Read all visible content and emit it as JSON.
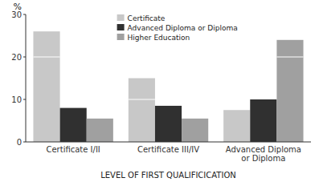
{
  "chart_data": {
    "type": "bar",
    "categories": [
      "Certificate I/II",
      "Certificate III/IV",
      "Advanced Diploma\nor Diploma"
    ],
    "series": [
      {
        "name": "Certificate",
        "color": "#c8c8c8",
        "values": [
          26,
          15,
          7.5
        ],
        "breaks": [
          20,
          10,
          null
        ]
      },
      {
        "name": "Advanced Diploma or Diploma",
        "color": "#303030",
        "values": [
          8,
          8.5,
          10
        ]
      },
      {
        "name": "Higher Education",
        "color": "#a0a0a0",
        "values": [
          5.5,
          5.5,
          24
        ],
        "breaks": [
          null,
          null,
          20
        ]
      }
    ],
    "xlabel": "LEVEL OF FIRST QUALIFICICATION",
    "ylabel": "%",
    "ylim": [
      0,
      30
    ],
    "yticks": [
      0,
      10,
      20,
      30
    ],
    "grid": false,
    "legend": "upper center"
  }
}
